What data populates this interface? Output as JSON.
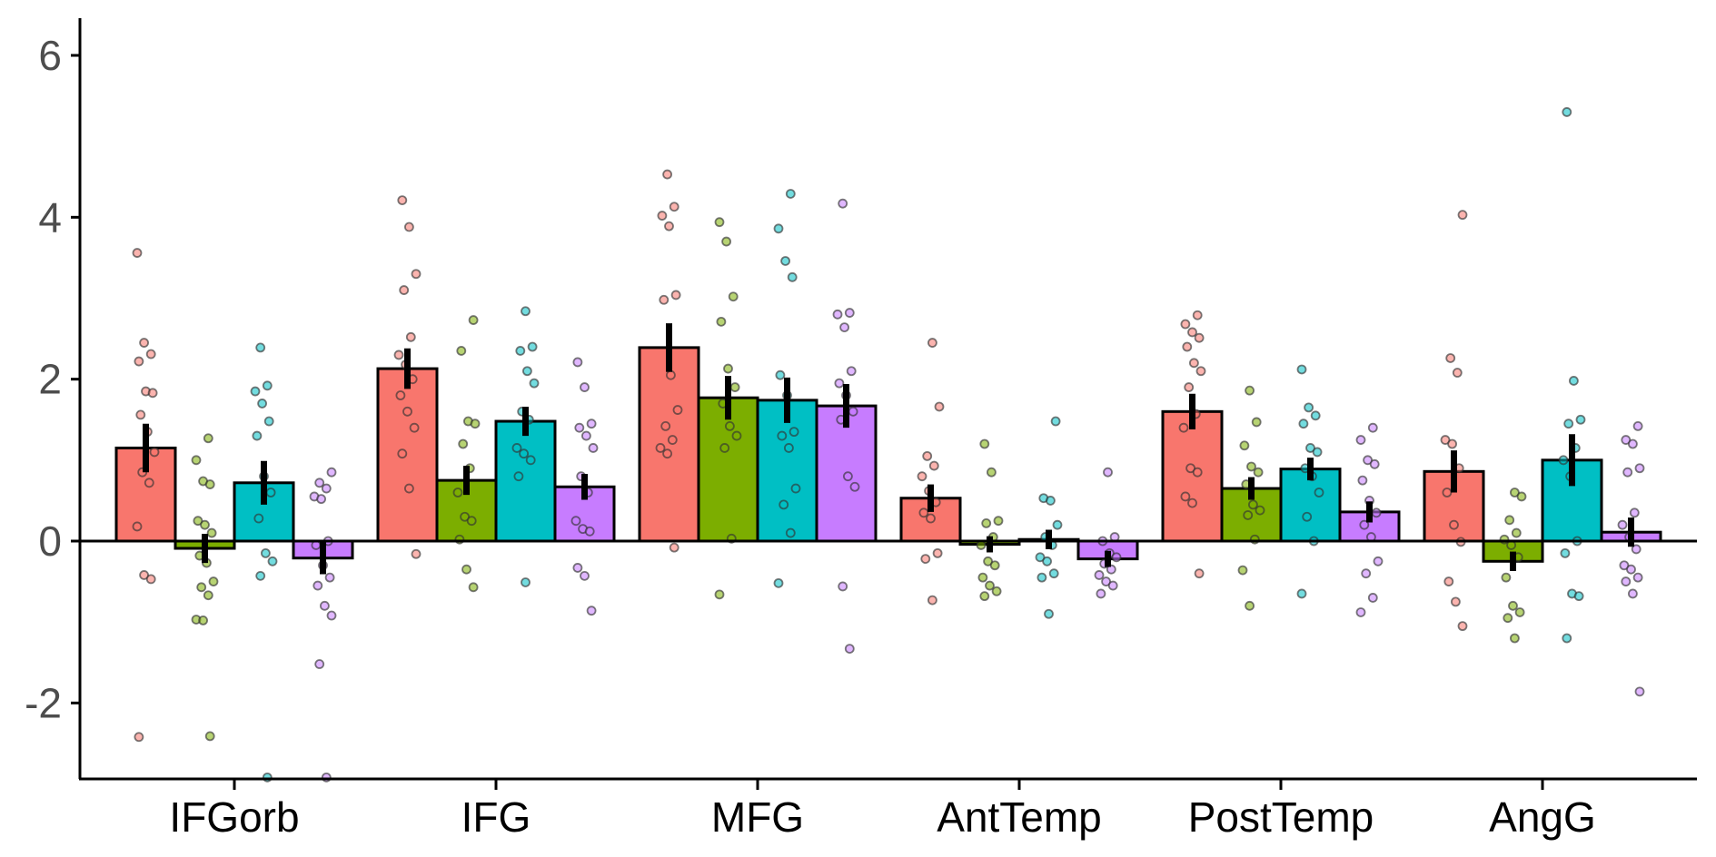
{
  "chart_data": {
    "type": "bar",
    "title": "",
    "xlabel": "",
    "ylabel": "",
    "ylim": [
      -2.9,
      6.4
    ],
    "yticks": [
      6,
      4,
      2,
      0,
      -2
    ],
    "ytick_labels": [
      "6",
      "4",
      "2",
      "0",
      "-2"
    ],
    "grid": false,
    "legend": "none",
    "categories": [
      "IFGorb",
      "IFG",
      "MFG",
      "AntTemp",
      "PostTemp",
      "AngG"
    ],
    "series": [
      {
        "color": "#F8766D",
        "values": [
          1.15,
          2.13,
          2.39,
          0.53,
          1.6,
          0.86
        ],
        "errors": [
          0.3,
          0.25,
          0.3,
          0.17,
          0.22,
          0.26
        ],
        "points": [
          [
            3.56,
            2.45,
            2.31,
            2.22,
            1.85,
            1.83,
            1.56,
            1.35,
            1.1,
            0.85,
            0.72,
            0.18,
            -0.42,
            -0.47,
            -2.42
          ],
          [
            4.21,
            3.88,
            3.3,
            3.1,
            2.52,
            2.3,
            2.18,
            2.0,
            1.8,
            1.6,
            1.4,
            1.08,
            0.65,
            -0.16
          ],
          [
            4.53,
            4.13,
            4.02,
            3.89,
            3.04,
            2.98,
            2.05,
            1.62,
            1.42,
            1.25,
            1.15,
            1.08,
            -0.08
          ],
          [
            2.45,
            1.66,
            1.05,
            0.93,
            0.8,
            0.62,
            0.48,
            0.35,
            0.28,
            -0.15,
            -0.22,
            -0.73
          ],
          [
            2.79,
            2.68,
            2.58,
            2.51,
            2.4,
            2.2,
            2.1,
            1.9,
            1.57,
            1.4,
            0.9,
            0.85,
            0.55,
            0.47,
            -0.4
          ],
          [
            4.03,
            2.26,
            2.08,
            1.25,
            1.2,
            0.9,
            0.6,
            0.2,
            -0.01,
            -0.5,
            -0.75,
            -1.05
          ]
        ]
      },
      {
        "color": "#7CAE00",
        "values": [
          -0.09,
          0.75,
          1.77,
          -0.04,
          0.65,
          -0.25
        ],
        "errors": [
          0.18,
          0.18,
          0.27,
          0.1,
          0.14,
          0.12
        ],
        "points": [
          [
            1.27,
            1.0,
            0.74,
            0.7,
            0.25,
            0.2,
            0.1,
            -0.18,
            -0.27,
            -0.5,
            -0.57,
            -0.67,
            -0.97,
            -0.98,
            -2.41
          ],
          [
            2.73,
            2.35,
            1.48,
            1.45,
            1.2,
            0.9,
            0.6,
            0.3,
            0.25,
            0.02,
            -0.35,
            -0.57
          ],
          [
            3.94,
            3.7,
            3.02,
            2.71,
            2.13,
            1.9,
            1.7,
            1.42,
            1.3,
            1.15,
            0.03,
            -0.66
          ],
          [
            1.2,
            0.85,
            0.25,
            0.22,
            0.05,
            -0.05,
            -0.25,
            -0.3,
            -0.45,
            -0.55,
            -0.62,
            -0.68
          ],
          [
            1.86,
            1.47,
            1.18,
            0.92,
            0.85,
            0.7,
            0.45,
            0.38,
            0.32,
            0.02,
            -0.36,
            -0.8
          ],
          [
            0.6,
            0.55,
            0.26,
            0.1,
            0.02,
            -0.05,
            -0.2,
            -0.45,
            -0.8,
            -0.88,
            -0.95,
            -1.2
          ]
        ]
      },
      {
        "color": "#00BFC4",
        "values": [
          0.72,
          1.48,
          1.74,
          0.02,
          0.89,
          1.0
        ],
        "errors": [
          0.27,
          0.18,
          0.28,
          0.12,
          0.14,
          0.32
        ],
        "points": [
          [
            2.39,
            1.92,
            1.85,
            1.7,
            1.48,
            1.3,
            0.8,
            0.6,
            0.28,
            -0.15,
            -0.25,
            -0.43,
            -2.92
          ],
          [
            2.84,
            2.4,
            2.35,
            2.1,
            1.95,
            1.6,
            1.5,
            1.15,
            1.08,
            1.0,
            0.8,
            -0.51
          ],
          [
            4.29,
            3.86,
            3.46,
            3.26,
            2.05,
            1.8,
            1.35,
            1.3,
            1.15,
            0.65,
            0.45,
            0.1,
            -0.52
          ],
          [
            1.48,
            0.53,
            0.5,
            0.2,
            0.05,
            -0.05,
            -0.2,
            -0.25,
            -0.4,
            -0.45,
            -0.9
          ],
          [
            2.12,
            1.65,
            1.55,
            1.45,
            1.15,
            1.1,
            0.9,
            0.8,
            0.6,
            0.3,
            0.0,
            -0.65
          ],
          [
            5.3,
            1.98,
            1.5,
            1.45,
            1.15,
            1.0,
            0.8,
            0.0,
            -0.15,
            -0.65,
            -0.68,
            -1.2
          ]
        ]
      },
      {
        "color": "#C77CFF",
        "values": [
          -0.21,
          0.67,
          1.67,
          -0.22,
          0.36,
          0.11
        ],
        "errors": [
          0.2,
          0.16,
          0.27,
          0.1,
          0.13,
          0.18
        ],
        "points": [
          [
            0.85,
            0.72,
            0.65,
            0.55,
            0.52,
            0.0,
            -0.05,
            -0.3,
            -0.45,
            -0.55,
            -0.8,
            -0.92,
            -1.52,
            -2.92
          ],
          [
            2.21,
            1.9,
            1.45,
            1.4,
            1.3,
            1.15,
            0.8,
            0.6,
            0.25,
            0.15,
            0.12,
            -0.33,
            -0.43,
            -0.86
          ],
          [
            4.17,
            2.82,
            2.8,
            2.64,
            2.1,
            1.95,
            1.8,
            1.6,
            1.5,
            0.8,
            0.67,
            -0.56,
            -1.33
          ],
          [
            0.85,
            0.05,
            0.0,
            -0.15,
            -0.2,
            -0.28,
            -0.35,
            -0.42,
            -0.5,
            -0.55,
            -0.65
          ],
          [
            1.4,
            1.25,
            1.0,
            0.95,
            0.75,
            0.5,
            0.35,
            0.2,
            0.05,
            -0.25,
            -0.4,
            -0.7,
            -0.88
          ],
          [
            1.42,
            1.25,
            1.2,
            0.9,
            0.85,
            0.35,
            0.2,
            0.05,
            -0.1,
            -0.3,
            -0.35,
            -0.45,
            -0.5,
            -0.65,
            -1.86
          ]
        ]
      }
    ]
  }
}
